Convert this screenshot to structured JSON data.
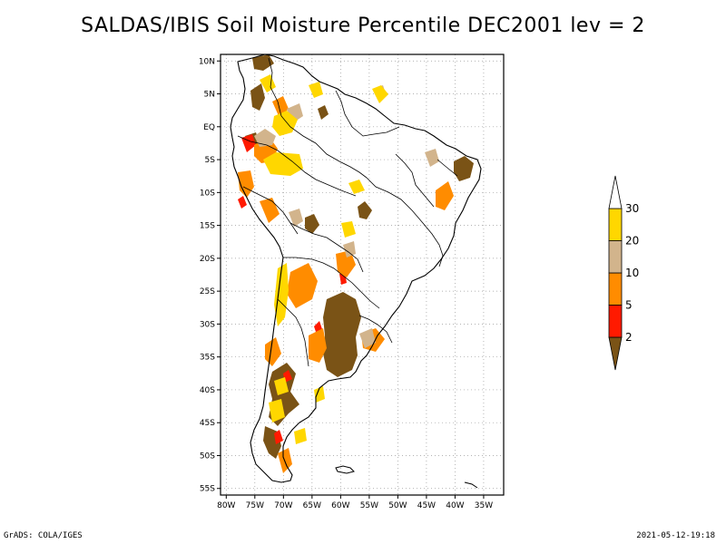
{
  "title": "SALDAS/IBIS Soil Moisture Percentile DEC2001 lev = 2",
  "footer": {
    "left": "GrADS: COLA/IGES",
    "right": "2021-05-12-19:18"
  },
  "axes": {
    "lat_labels": [
      "10N",
      "5N",
      "EQ",
      "5S",
      "10S",
      "15S",
      "20S",
      "25S",
      "30S",
      "35S",
      "40S",
      "45S",
      "50S",
      "55S"
    ],
    "lat_values": [
      10,
      5,
      0,
      -5,
      -10,
      -15,
      -20,
      -25,
      -30,
      -35,
      -40,
      -45,
      -50,
      -55
    ],
    "lon_labels": [
      "80W",
      "75W",
      "70W",
      "65W",
      "60W",
      "55W",
      "50W",
      "45W",
      "40W",
      "35W"
    ],
    "lon_values": [
      -80,
      -75,
      -70,
      -65,
      -60,
      -55,
      -50,
      -45,
      -40,
      -35
    ],
    "lat_range": [
      -56,
      11
    ],
    "lon_range": [
      -81,
      -31.5
    ],
    "grid": true
  },
  "colorbar": {
    "orientation": "vertical",
    "labels": [
      "2",
      "5",
      "10",
      "20",
      "30"
    ],
    "bins": [
      {
        "color": "#7a5316"
      },
      {
        "color": "#ff1a00"
      },
      {
        "color": "#ff8c00"
      },
      {
        "color": "#d2b48c"
      },
      {
        "color": "#ffd700"
      },
      {
        "color": "#ffffff"
      }
    ]
  },
  "colors": {
    "brown": "#7a5316",
    "red": "#ff1a00",
    "orange": "#ff8c00",
    "tan": "#d2b48c",
    "yellow": "#ffd700"
  }
}
